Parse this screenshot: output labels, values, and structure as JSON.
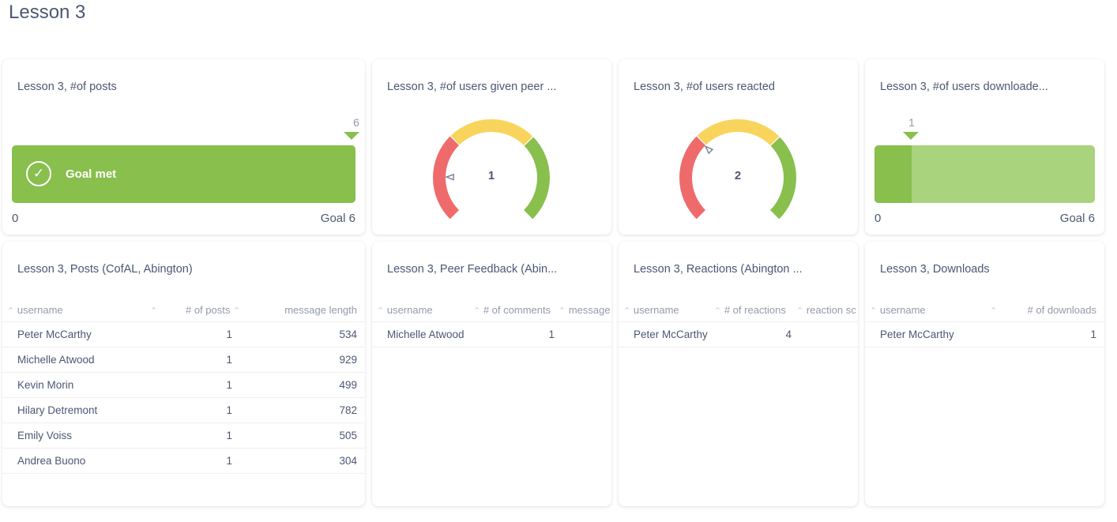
{
  "page": {
    "title": "Lesson 3"
  },
  "colors": {
    "green": "#88bf4d",
    "green_light": "#a9d37c",
    "yellow": "#f9d45c",
    "red": "#ef6b6b",
    "text": "#4c5773",
    "muted": "#949aab"
  },
  "cards": {
    "posts_progress": {
      "title": "Lesson 3, #of posts",
      "value": "6",
      "value_fraction": 1.0,
      "goal_met_label": "Goal met",
      "check_icon": "check-circle-icon",
      "min_label": "0",
      "goal_label": "Goal 6"
    },
    "peer_gauge": {
      "title": "Lesson 3, #of users given peer ...",
      "value": "1",
      "needle_fraction": 0.17
    },
    "reacted_gauge": {
      "title": "Lesson 3, #of users reacted",
      "value": "2",
      "needle_fraction": 0.33
    },
    "downloaded_progress": {
      "title": "Lesson 3, #of users downloade...",
      "value": "1",
      "value_fraction": 0.1667,
      "min_label": "0",
      "goal_label": "Goal 6"
    },
    "posts_table": {
      "title": "Lesson 3, Posts (CofAL, Abington)",
      "columns": [
        "username",
        "# of posts",
        "message length"
      ],
      "rows": [
        [
          "Peter McCarthy",
          "1",
          "534"
        ],
        [
          "Michelle Atwood",
          "1",
          "929"
        ],
        [
          "Kevin Morin",
          "1",
          "499"
        ],
        [
          "Hilary Detremont",
          "1",
          "782"
        ],
        [
          "Emily Voiss",
          "1",
          "505"
        ],
        [
          "Andrea Buono",
          "1",
          "304"
        ]
      ]
    },
    "peer_table": {
      "title": "Lesson 3, Peer Feedback (Abin...",
      "columns": [
        "username",
        "# of comments",
        "message"
      ],
      "rows": [
        [
          "Michelle Atwood",
          "1"
        ]
      ]
    },
    "reactions_table": {
      "title": "Lesson 3, Reactions (Abington ...",
      "columns": [
        "username",
        "# of reactions",
        "reaction sc"
      ],
      "rows": [
        [
          "Peter McCarthy",
          "4"
        ]
      ]
    },
    "downloads_table": {
      "title": "Lesson 3, Downloads",
      "columns": [
        "username",
        "# of downloads"
      ],
      "rows": [
        [
          "Peter McCarthy",
          "1"
        ]
      ]
    }
  }
}
